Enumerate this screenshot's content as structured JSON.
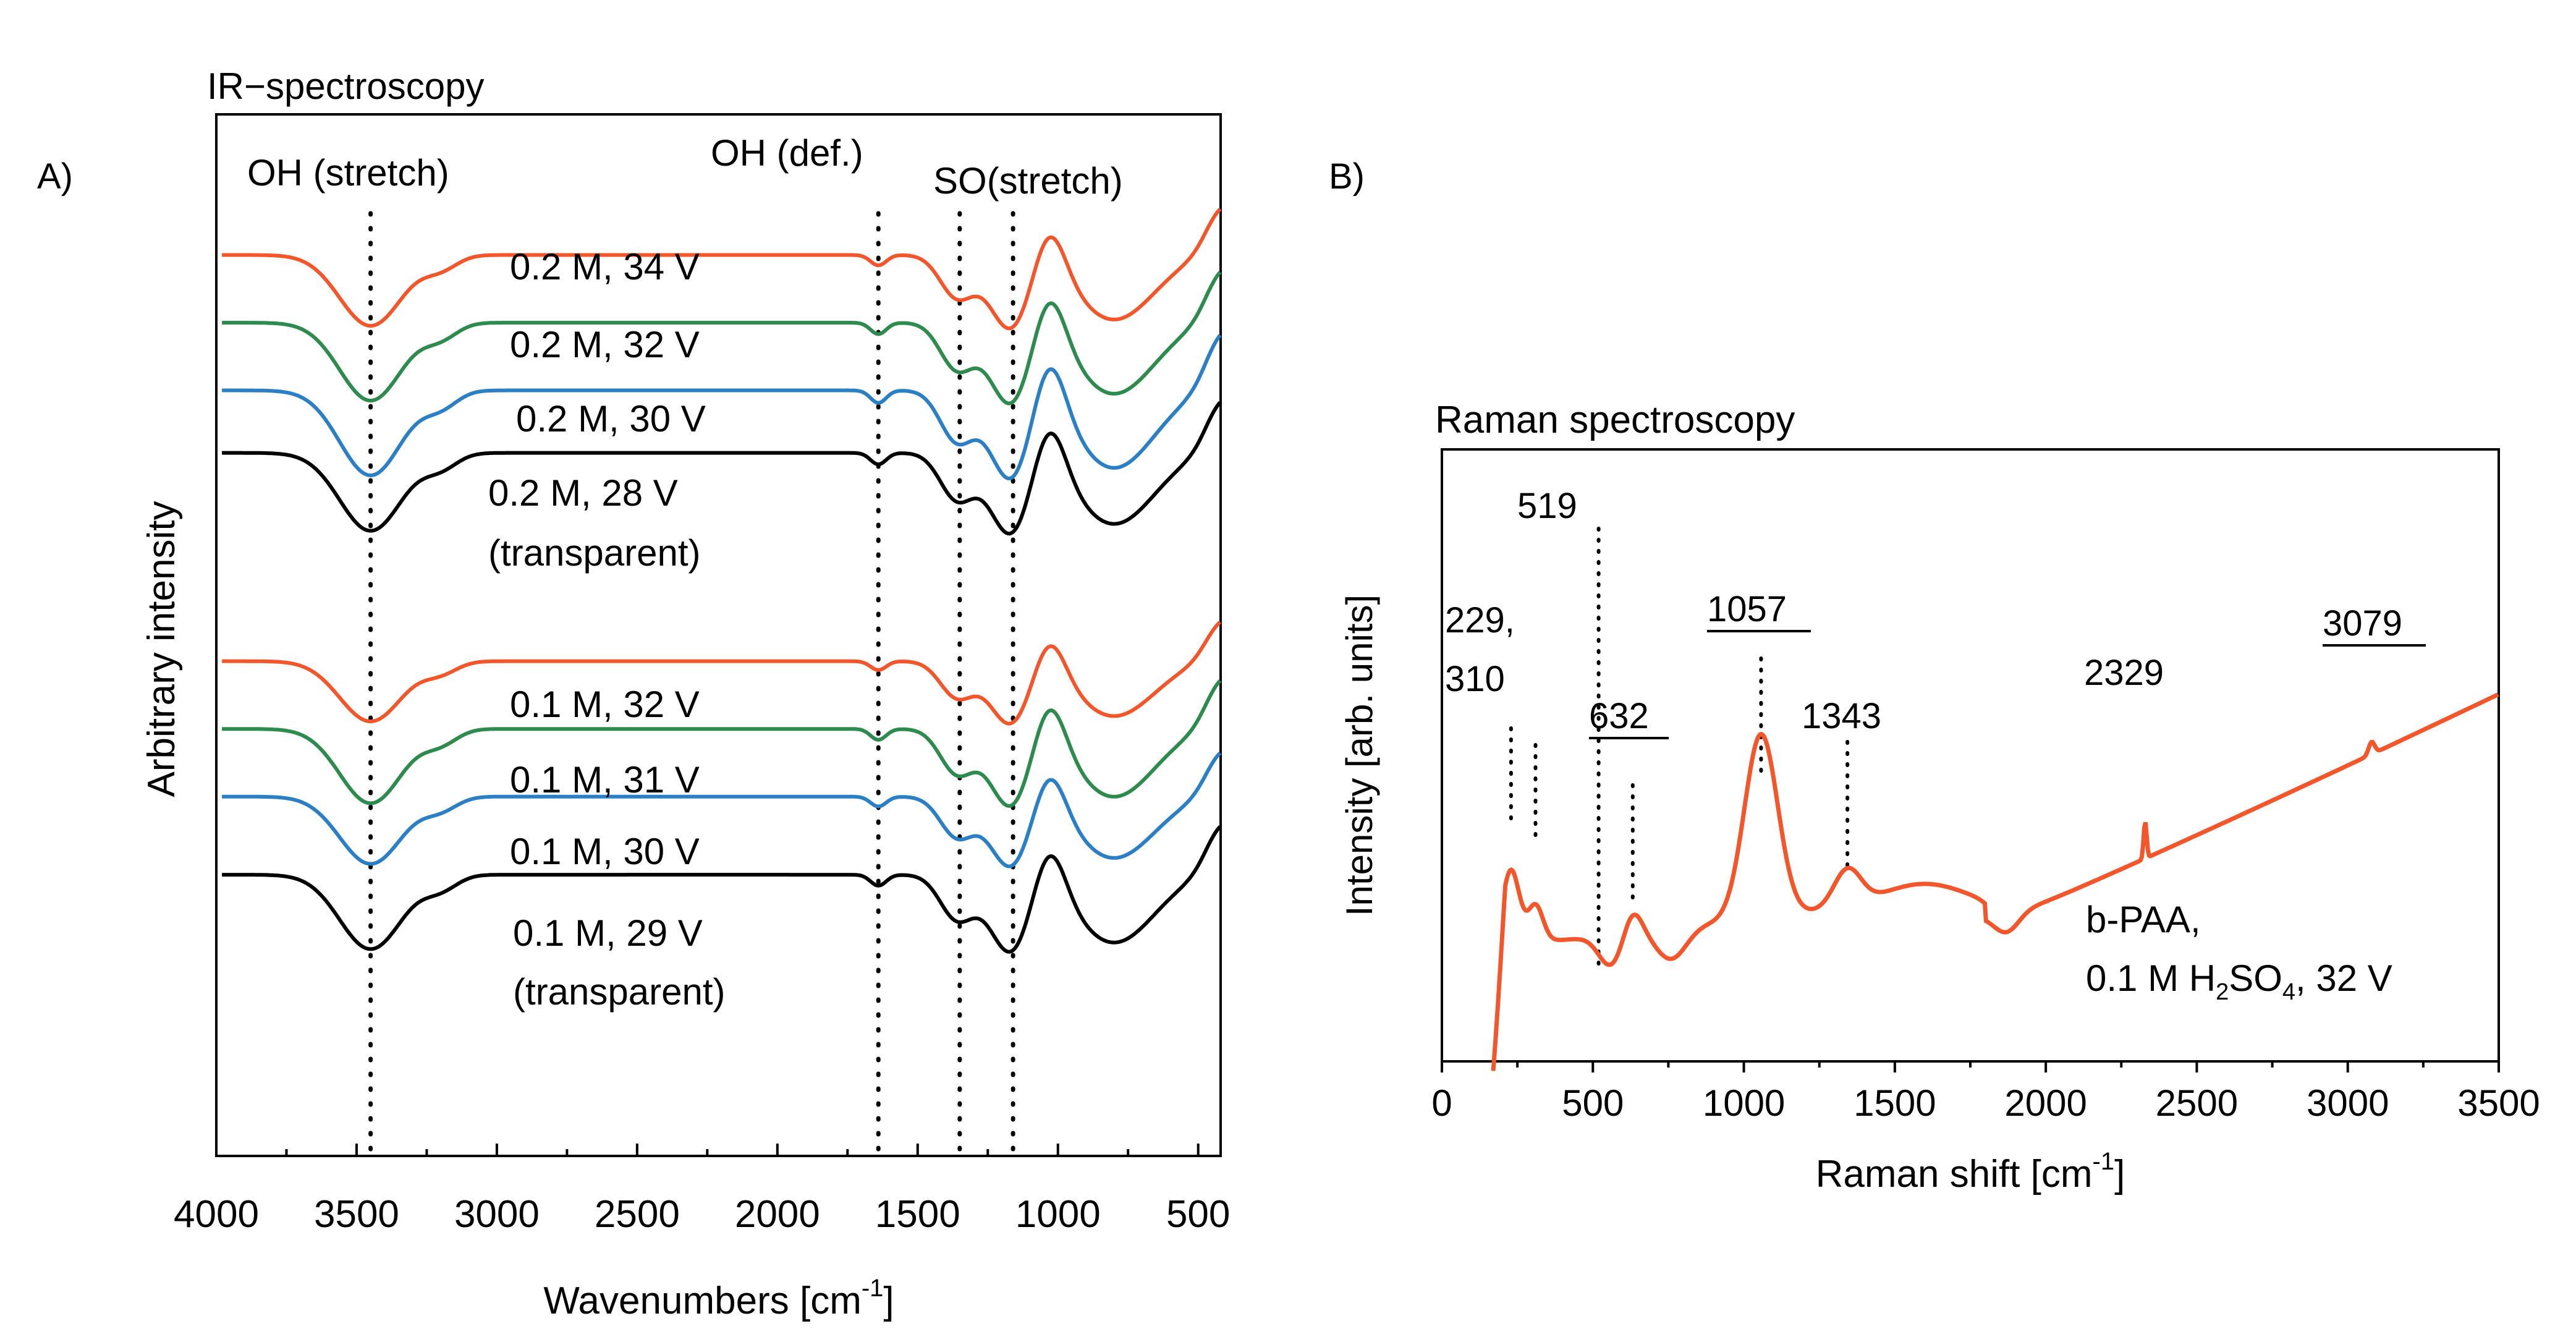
{
  "chart_data": [
    {
      "type": "line",
      "panel_label": "A)",
      "title": "IR−spectroscopy",
      "xlabel": "Wavenumbers [cm",
      "xlabel_sup": "-1",
      "xlabel_end": "]",
      "ylabel": "Arbitrary intensity",
      "xlim": [
        4000,
        420
      ],
      "x_ticks": [
        4000,
        3500,
        3000,
        2500,
        2000,
        1500,
        1000,
        500
      ],
      "x_tick_labels": [
        "4000",
        "3500",
        "3000",
        "2500",
        "2000",
        "1500",
        "1000",
        "500"
      ],
      "band_labels": [
        "OH (stretch)",
        "OH (def.)",
        "SO(stretch)"
      ],
      "marker_lines": [
        3450,
        1640,
        1350,
        1160
      ],
      "colors": {
        "red": "#f2562a",
        "green": "#2e8b4e",
        "blue": "#2b7fc4",
        "black": "#000000"
      },
      "series": [
        {
          "name": "0.2 M, 34 V",
          "color": "red",
          "baseline": 0.865,
          "scale": 1.0
        },
        {
          "name": "0.2 M, 32 V",
          "color": "green",
          "baseline": 0.8,
          "scale": 1.1
        },
        {
          "name": "0.2 M, 30 V",
          "color": "blue",
          "baseline": 0.735,
          "scale": 1.2
        },
        {
          "name": "0.2 M, 28 V",
          "note": "(transparent)",
          "color": "black",
          "baseline": 0.675,
          "scale": 1.1
        },
        {
          "name": "0.1 M, 32 V",
          "color": "red",
          "baseline": 0.475,
          "scale": 0.85
        },
        {
          "name": "0.1 M, 31 V",
          "color": "green",
          "baseline": 0.41,
          "scale": 1.05
        },
        {
          "name": "0.1 M, 30 V",
          "color": "blue",
          "baseline": 0.345,
          "scale": 0.95
        },
        {
          "name": "0.1 M, 29 V",
          "note": "(transparent)",
          "color": "black",
          "baseline": 0.27,
          "scale": 1.05
        }
      ]
    },
    {
      "type": "line",
      "panel_label": "B)",
      "title": "Raman spectroscopy",
      "xlabel": "Raman shift [cm",
      "xlabel_sup": "-1",
      "xlabel_end": "]",
      "ylabel": "Intensity [arb. units]",
      "xlim": [
        0,
        3500
      ],
      "x_ticks": [
        0,
        500,
        1000,
        1500,
        2000,
        2500,
        3000,
        3500
      ],
      "x_tick_labels": [
        "0",
        "500",
        "1000",
        "1500",
        "2000",
        "2500",
        "3000",
        "3500"
      ],
      "color": "#f2562a",
      "peaks": [
        {
          "label": "229,",
          "x": 229
        },
        {
          "label": "310",
          "x": 310
        },
        {
          "label": "519",
          "x": 519
        },
        {
          "label": "632",
          "x": 632,
          "underline": true
        },
        {
          "label": "1057",
          "x": 1057,
          "underline": true
        },
        {
          "label": "1343",
          "x": 1343
        },
        {
          "label": "2329",
          "x": 2329
        },
        {
          "label": "3079",
          "x": 3079,
          "underline": true
        }
      ],
      "sample": {
        "line1": "b-PAA,",
        "line2_a": "0.1 M H",
        "line2_sub1": "2",
        "line2_b": "SO",
        "line2_sub2": "4",
        "line2_c": ", 32 V"
      }
    }
  ]
}
